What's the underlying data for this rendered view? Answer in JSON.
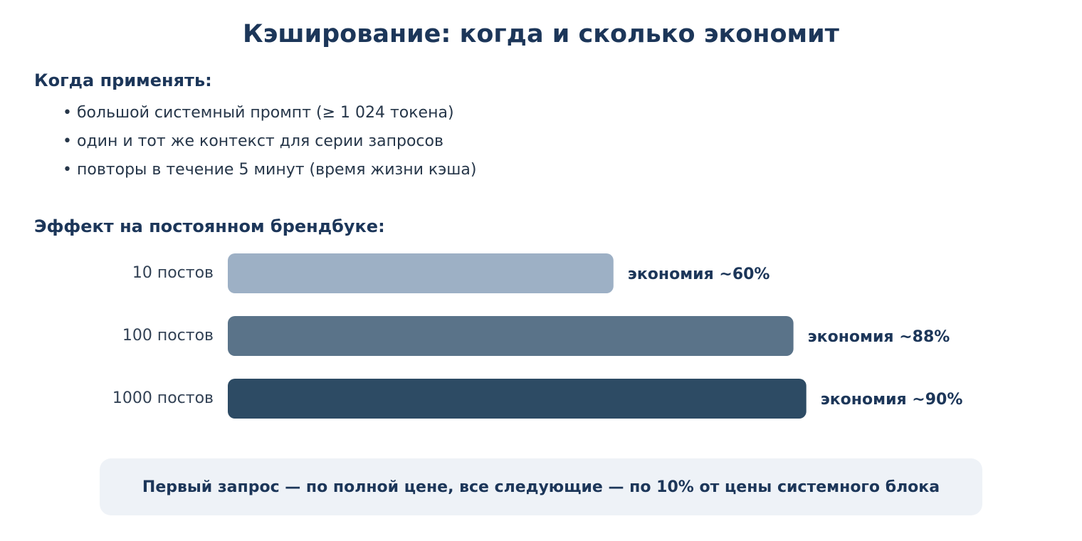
{
  "page": {
    "title": "Кэширование: когда и сколько экономит"
  },
  "usage": {
    "heading": "Когда применять:",
    "items": [
      "большой системный промпт (≥ 1 024 токена)",
      "один и тот же контекст для серии запросов",
      "повторы в течение 5 минут (время жизни кэша)"
    ]
  },
  "effect": {
    "heading": "Эффект на постоянном брендбуке:"
  },
  "chart_data": {
    "type": "bar",
    "orientation": "horizontal",
    "categories": [
      "10 постов",
      "100 постов",
      "1000 постов"
    ],
    "values": [
      60,
      88,
      90
    ],
    "value_labels": [
      "экономия ~60%",
      "экономия ~88%",
      "экономия ~90%"
    ],
    "colors": [
      "#9db0c5",
      "#5a7389",
      "#2d4b64"
    ],
    "title": "",
    "xlabel": "",
    "ylabel": "",
    "xlim": [
      0,
      100
    ],
    "grid": false,
    "legend": "none"
  },
  "note": {
    "text": "Первый запрос — по полной цене, все следующие — по 10% от цены системного блока"
  }
}
